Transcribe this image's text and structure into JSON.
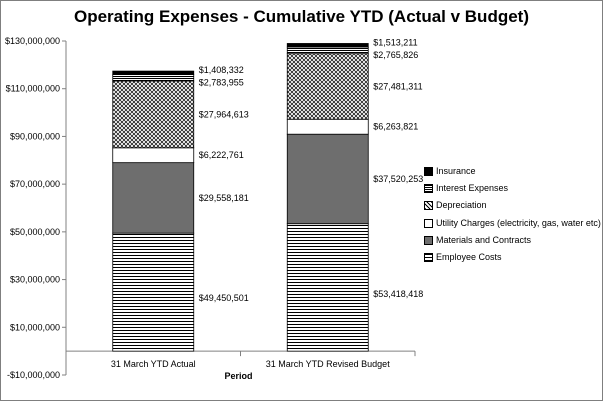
{
  "chart_data": {
    "type": "bar",
    "stacked": true,
    "title": "Operating Expenses - Cumulative YTD (Actual v Budget)",
    "xlabel": "Period",
    "ylabel": "",
    "ylim": [
      -10000000,
      130000000
    ],
    "y_ticks": [
      -10000000,
      10000000,
      30000000,
      50000000,
      70000000,
      90000000,
      110000000,
      130000000
    ],
    "y_tick_labels": [
      "-$10,000,000",
      "$10,000,000",
      "$30,000,000",
      "$50,000,000",
      "$70,000,000",
      "$90,000,000",
      "$110,000,000",
      "$130,000,000"
    ],
    "categories": [
      "31 March YTD Actual",
      "31 March YTD Revised Budget"
    ],
    "legend_position": "right",
    "grid": false,
    "series": [
      {
        "name": "Employee Costs",
        "pattern": "hlines",
        "values": [
          49450501,
          53418418
        ],
        "labels": [
          "$49,450,501",
          "$53,418,418"
        ]
      },
      {
        "name": "Materials and Contracts",
        "pattern": "dark",
        "values": [
          29558181,
          37520253
        ],
        "labels": [
          "$29,558,181",
          "$37,520,253"
        ]
      },
      {
        "name": "Utility Charges (electricity, gas, water etc)",
        "pattern": "white",
        "values": [
          6222761,
          6263821
        ],
        "labels": [
          "$6,222,761",
          "$6,263,821"
        ]
      },
      {
        "name": "Depreciation",
        "pattern": "crosshatch",
        "values": [
          27964613,
          27481311
        ],
        "labels": [
          "$27,964,613",
          "$27,481,311"
        ]
      },
      {
        "name": "Interest Expenses",
        "pattern": "fine-hlines",
        "values": [
          2783955,
          2765826
        ],
        "labels": [
          "$2,783,955",
          "$2,765,826"
        ]
      },
      {
        "name": "Insurance",
        "pattern": "black",
        "values": [
          1408332,
          1513211
        ],
        "labels": [
          "$1,408,332",
          "$1,513,211"
        ]
      }
    ]
  },
  "legend_order": [
    "Insurance",
    "Interest Expenses",
    "Depreciation",
    "Utility Charges (electricity, gas, water etc)",
    "Materials and Contracts",
    "Employee Costs"
  ],
  "legend": {
    "insurance": "Insurance",
    "interest": "Interest Expenses",
    "depreciation": "Depreciation",
    "utility": "Utility Charges (electricity, gas, water etc)",
    "materials": "Materials and Contracts",
    "employee": "Employee Costs"
  },
  "colors": {
    "axis": "#808080",
    "bar_outline": "#000000",
    "dark_fill": "#6e6e6e",
    "background": "#ffffff",
    "frame": "#7f7f7f"
  }
}
